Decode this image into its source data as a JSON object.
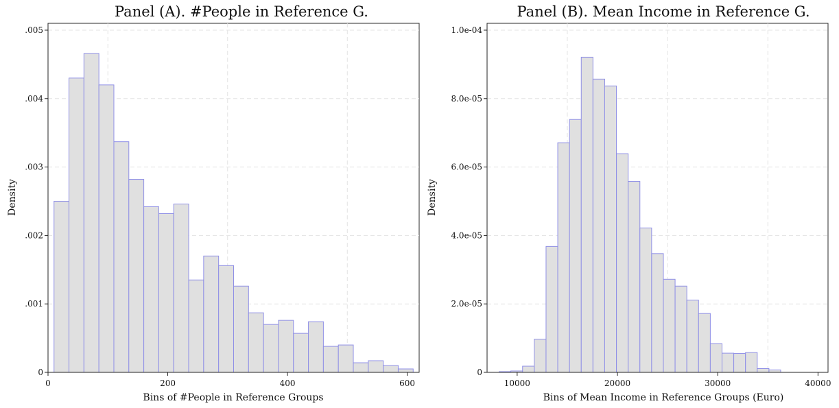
{
  "chart_data": [
    {
      "type": "bar",
      "title": "Panel (A). #People in Reference G.",
      "xlabel": "Bins of #People in Reference Groups",
      "ylabel": "Density",
      "xlim": [
        0,
        620
      ],
      "ylim": [
        0,
        0.0051
      ],
      "xticks": [
        0,
        200,
        400,
        600
      ],
      "xtick_labels": [
        "0",
        "200",
        "400",
        "600"
      ],
      "yticks": [
        0,
        0.001,
        0.002,
        0.003,
        0.004,
        0.005
      ],
      "ytick_labels": [
        "0",
        ".001",
        ".002",
        ".003",
        ".004",
        ".005"
      ],
      "xgrid": [
        100,
        300,
        500
      ],
      "grid": true,
      "bin_start": 10,
      "bin_width": 25,
      "values": [
        0.0025,
        0.0043,
        0.00466,
        0.0042,
        0.00337,
        0.00282,
        0.00242,
        0.00232,
        0.00246,
        0.00135,
        0.0017,
        0.00156,
        0.00126,
        0.00087,
        0.0007,
        0.00076,
        0.00057,
        0.00074,
        0.00038,
        0.0004,
        0.00014,
        0.00017,
        0.0001,
        5e-05
      ],
      "colors": {
        "fill": "#e0e0e0",
        "edge": "#8f8fe6"
      }
    },
    {
      "type": "bar",
      "title": "Panel (B). Mean Income in Reference G.",
      "xlabel": "Bins of Mean Income in Reference Groups (Euro)",
      "ylabel": "Density",
      "xlim": [
        7000,
        41000
      ],
      "ylim": [
        0,
        0.000102
      ],
      "xticks": [
        10000,
        20000,
        30000,
        40000
      ],
      "xtick_labels": [
        "10000",
        "20000",
        "30000",
        "40000"
      ],
      "yticks": [
        0,
        2e-05,
        4e-05,
        6e-05,
        8e-05,
        0.0001
      ],
      "ytick_labels": [
        "0",
        "2.0e-05",
        "4.0e-05",
        "6.0e-05",
        "8.0e-05",
        "1.0e-04"
      ],
      "xgrid": [
        15000,
        25000,
        35000
      ],
      "grid": true,
      "bin_start": 8200,
      "bin_width": 1170,
      "values": [
        2e-07,
        4e-07,
        1.8e-06,
        9.7e-06,
        3.68e-05,
        6.71e-05,
        7.39e-05,
        9.21e-05,
        8.57e-05,
        8.37e-05,
        6.39e-05,
        5.58e-05,
        4.22e-05,
        3.47e-05,
        2.72e-05,
        2.52e-05,
        2.11e-05,
        1.72e-05,
        8.4e-06,
        5.6e-06,
        5.5e-06,
        5.8e-06,
        1.1e-06,
        7e-07
      ],
      "colors": {
        "fill": "#e0e0e0",
        "edge": "#8f8fe6"
      }
    }
  ]
}
